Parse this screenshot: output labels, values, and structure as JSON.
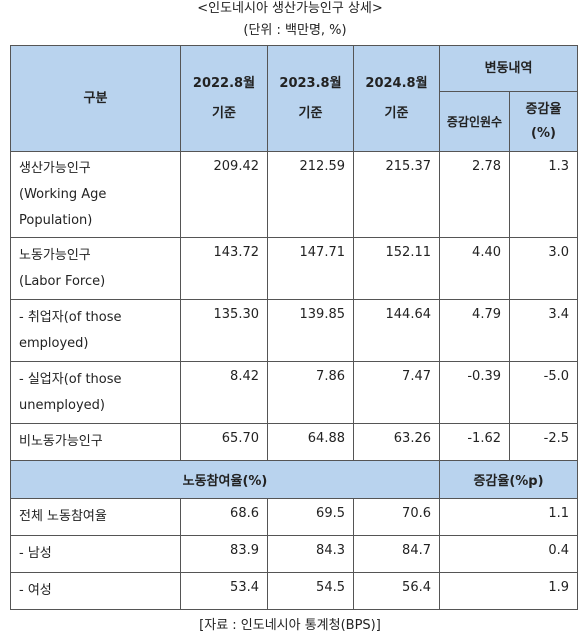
{
  "title": "<인도네시아 생산가능인구 상세>",
  "unit": "(단위 : 백만명, %)",
  "header": {
    "category": "구분",
    "y2022_a": "2022.8월",
    "y2022_b": "기준",
    "y2023_a": "2023.8월",
    "y2023_b": "기준",
    "y2024_a": "2024.8월",
    "y2024_b": "기준",
    "change": "변동내역",
    "change_count": "증감인원수",
    "change_rate_a": "증감율",
    "change_rate_b": "(%)"
  },
  "rows": [
    {
      "label_1": "생산가능인구",
      "label_2": "(Working Age",
      "label_3": "Population)",
      "v2022": "209.42",
      "v2023": "212.59",
      "v2024": "215.37",
      "diff": "2.78",
      "rate": "1.3"
    },
    {
      "label_1": "노동가능인구",
      "label_2": "(Labor Force)",
      "v2022": "143.72",
      "v2023": "147.71",
      "v2024": "152.11",
      "diff": "4.40",
      "rate": "3.0"
    },
    {
      "label_1": "- 취업자(of those",
      "label_2": "employed)",
      "v2022": "135.30",
      "v2023": "139.85",
      "v2024": "144.64",
      "diff": "4.79",
      "rate": "3.4"
    },
    {
      "label_1": "- 실업자(of those",
      "label_2": "unemployed)",
      "v2022": "8.42",
      "v2023": "7.86",
      "v2024": "7.47",
      "diff": "-0.39",
      "rate": "-5.0"
    },
    {
      "label_1": "비노동가능인구",
      "v2022": "65.70",
      "v2023": "64.88",
      "v2024": "63.26",
      "diff": "-1.62",
      "rate": "-2.5"
    }
  ],
  "participation_header": {
    "label": "노동참여율(%)",
    "change": "증감율(%p)"
  },
  "participation_rows": [
    {
      "label": "전체 노동참여율",
      "v2022": "68.6",
      "v2023": "69.5",
      "v2024": "70.6",
      "change": "1.1"
    },
    {
      "label": "- 남성",
      "v2022": "83.9",
      "v2023": "84.3",
      "v2024": "84.7",
      "change": "0.4"
    },
    {
      "label": "- 여성",
      "v2022": "53.4",
      "v2023": "54.5",
      "v2024": "56.4",
      "change": "1.9"
    }
  ],
  "source": "[자료 : 인도네시아 통계청(BPS)]"
}
